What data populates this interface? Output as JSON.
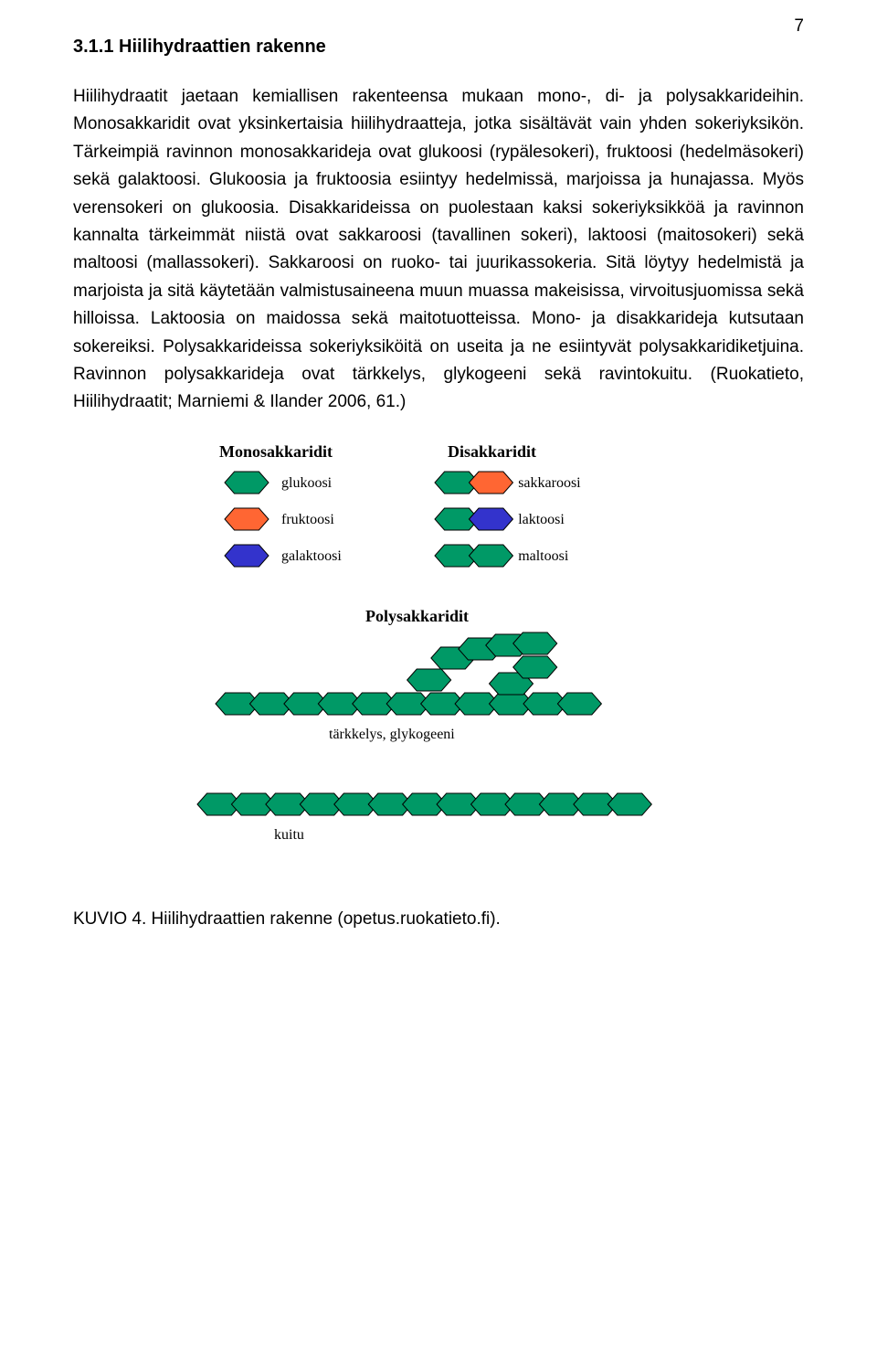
{
  "page_number": "7",
  "heading": "3.1.1 Hiilihydraattien rakenne",
  "paragraph": "Hiilihydraatit jaetaan kemiallisen rakenteensa mukaan mono-, di- ja polysakkarideihin. Monosakkaridit ovat yksinkertaisia hiilihydraatteja, jotka sisältävät vain yhden sokeriyksikön. Tärkeimpiä ravinnon monosakkarideja ovat glukoosi (rypälesokeri), fruktoosi (hedelmäsokeri) sekä galaktoosi. Glukoosia ja fruktoosia esiintyy hedelmissä, marjoissa ja hunajassa. Myös verensokeri on glukoosia. Disakkarideissa on puolestaan kaksi sokeriyksikköä ja ravinnon kannalta tärkeimmät niistä ovat sakkaroosi (tavallinen sokeri), laktoosi (maitosokeri) sekä maltoosi (mallassokeri). Sakkaroosi on ruoko- tai juurikassokeria. Sitä löytyy hedelmistä ja marjoista ja sitä käytetään valmistusaineena muun muassa makeisissa, virvoitusjuomissa sekä hilloissa. Laktoosia on maidossa sekä maitotuotteissa. Mono- ja disakkarideja kutsutaan sokereiksi. Polysakkarideissa sokeriyksiköitä on useita ja ne esiintyvät polysakkaridiketjuina. Ravinnon polysakkarideja ovat tärkkelys, glykogeeni sekä ravintokuitu. (Ruokatieto, Hiilihydraatit; Marniemi & Ilander 2006, 61.)",
  "caption": "KUVIO 4. Hiilihydraattien rakenne (opetus.ruokatieto.fi).",
  "diagram": {
    "colors": {
      "green": "#009966",
      "orange": "#ff6633",
      "blue": "#3333cc",
      "outline": "#000000",
      "text": "#000000"
    },
    "titles": {
      "mono": "Monosakkaridit",
      "di": "Disakkaridit",
      "poly": "Polysakkaridit"
    },
    "mono": [
      {
        "color": "green",
        "label": "glukoosi"
      },
      {
        "color": "orange",
        "label": "fruktoosi"
      },
      {
        "color": "blue",
        "label": "galaktoosi"
      }
    ],
    "di": [
      {
        "c1": "green",
        "c2": "orange",
        "label": "sakkaroosi"
      },
      {
        "c1": "green",
        "c2": "blue",
        "label": "laktoosi"
      },
      {
        "c1": "green",
        "c2": "green",
        "label": "maltoosi"
      }
    ],
    "poly_labels": {
      "starch": "tärkkelys, glykogeeni",
      "fiber": "kuitu"
    },
    "hex": {
      "w": 48,
      "h": 24
    }
  }
}
